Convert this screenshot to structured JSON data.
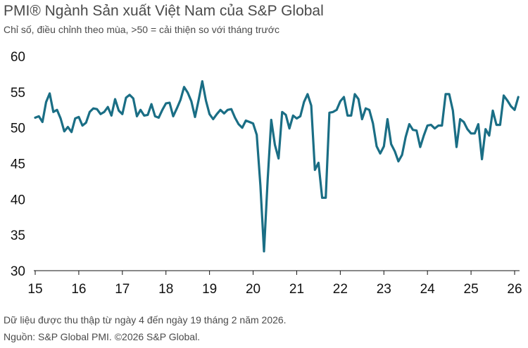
{
  "header": {
    "title": "PMI® Ngành Sản xuất Việt Nam của S&P Global",
    "subtitle": "Chỉ số, điều chỉnh theo mùa, >50 = cải thiện so với tháng trước"
  },
  "footer": {
    "note": "Dữ liệu được thu thập từ ngày 4 đến ngày 19 tháng 2 năm 2026.",
    "source": "Nguồn: S&P Global PMI. ©2026 S&P Global."
  },
  "chart_data": {
    "type": "line",
    "title": "PMI® Ngành Sản xuất Việt Nam của S&P Global",
    "subtitle": "Chỉ số, điều chỉnh theo mùa, >50 = cải thiện so với tháng trước",
    "xlabel": "",
    "ylabel": "",
    "ylim": [
      30,
      60
    ],
    "yticks": [
      30,
      35,
      40,
      45,
      50,
      55,
      60
    ],
    "xticks": [
      "15",
      "16",
      "17",
      "18",
      "19",
      "20",
      "21",
      "22",
      "23",
      "24",
      "25",
      "26"
    ],
    "x_start": "2015-01",
    "x_end": "2026-01",
    "grid": false,
    "reference_line": 50,
    "line_color": "#1a6e85",
    "series": [
      {
        "values": [
          51.4,
          51.6,
          50.8,
          53.6,
          54.8,
          52.2,
          52.5,
          51.3,
          49.5,
          50.1,
          49.4,
          51.3,
          51.5,
          50.3,
          50.7,
          52.2,
          52.7,
          52.6,
          51.9,
          52.2,
          52.9,
          51.7,
          54.0,
          52.4,
          51.9,
          54.2,
          54.6,
          54.1,
          51.6,
          52.5,
          51.7,
          51.8,
          53.3,
          51.6,
          51.4,
          52.5,
          53.4,
          53.5,
          51.6,
          52.7,
          53.9,
          55.7,
          54.9,
          53.7,
          51.5,
          53.9,
          56.5,
          53.8,
          51.9,
          51.2,
          51.9,
          52.5,
          52.0,
          52.5,
          52.6,
          51.4,
          50.5,
          50.0,
          51.0,
          50.8,
          50.6,
          49.0,
          41.9,
          32.7,
          42.7,
          51.1,
          47.6,
          45.7,
          52.2,
          51.8,
          49.9,
          51.7,
          51.3,
          51.6,
          53.6,
          54.7,
          53.1,
          44.1,
          45.1,
          40.2,
          40.2,
          52.1,
          52.2,
          52.5,
          53.7,
          54.3,
          51.7,
          51.7,
          54.7,
          54.0,
          51.2,
          52.7,
          52.5,
          50.6,
          47.4,
          46.4,
          47.4,
          51.2,
          47.7,
          46.7,
          45.3,
          46.2,
          48.7,
          50.5,
          49.7,
          49.6,
          47.3,
          48.9,
          50.3,
          50.4,
          49.9,
          50.3,
          50.3,
          54.7,
          54.7,
          52.4,
          47.3,
          51.2,
          50.8,
          49.8,
          49.2,
          49.2,
          50.5,
          45.6,
          49.8,
          48.9,
          52.4,
          50.4,
          50.4,
          54.5,
          53.8,
          53.0,
          52.5,
          54.3
        ]
      }
    ]
  }
}
